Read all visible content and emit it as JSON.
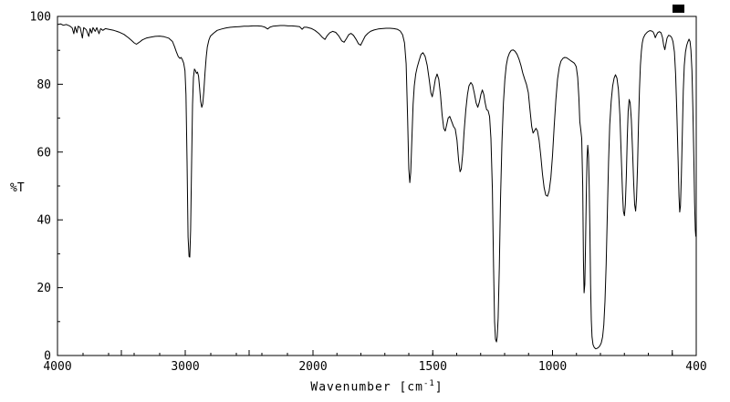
{
  "chart_data": {
    "type": "line",
    "title": "",
    "ylabel": "%T",
    "xlabel": "Wavenumber [cm-1]",
    "xlabel_parts": {
      "main": "Wavenumber [cm",
      "sup": "-1",
      "end": "]"
    },
    "line_color": "#000000",
    "background": "#ffffff",
    "grid": false,
    "legend": "none",
    "x_axis": {
      "min": 400,
      "max": 4000,
      "reversed": true,
      "scale_break_at": 2000,
      "fraction_above_2000": 0.4,
      "major_ticks": [
        4000,
        3500,
        3000,
        2500,
        2000,
        1500,
        1000,
        500,
        400
      ],
      "minor_step_above_2000": 200,
      "minor_step_below_2000": 100,
      "tick_labels": [
        {
          "value": 4000,
          "label": "4000"
        },
        {
          "value": 3000,
          "label": "3000"
        },
        {
          "value": 2000,
          "label": "2000"
        },
        {
          "value": 1500,
          "label": "1500"
        },
        {
          "value": 1000,
          "label": "1000"
        },
        {
          "value": 400,
          "label": "400"
        }
      ]
    },
    "y_axis": {
      "min": 0,
      "max": 100,
      "major_ticks": [
        0,
        20,
        40,
        60,
        80,
        100
      ],
      "minor_step": 10,
      "tick_labels": [
        "0",
        "20",
        "40",
        "60",
        "80",
        "100"
      ]
    },
    "points": [
      [
        4000,
        97.6
      ],
      [
        3975,
        97.8
      ],
      [
        3955,
        97.4
      ],
      [
        3930,
        97.6
      ],
      [
        3905,
        97.2
      ],
      [
        3885,
        96.6
      ],
      [
        3872,
        94.9
      ],
      [
        3862,
        97.0
      ],
      [
        3848,
        95.2
      ],
      [
        3838,
        97.1
      ],
      [
        3822,
        96.7
      ],
      [
        3805,
        93.6
      ],
      [
        3795,
        96.7
      ],
      [
        3775,
        96.1
      ],
      [
        3755,
        94.1
      ],
      [
        3745,
        96.4
      ],
      [
        3732,
        95.1
      ],
      [
        3722,
        96.7
      ],
      [
        3705,
        95.6
      ],
      [
        3692,
        96.7
      ],
      [
        3675,
        94.9
      ],
      [
        3662,
        96.4
      ],
      [
        3645,
        95.9
      ],
      [
        3625,
        96.4
      ],
      [
        3600,
        96.2
      ],
      [
        3560,
        95.9
      ],
      [
        3520,
        95.4
      ],
      [
        3480,
        94.7
      ],
      [
        3445,
        93.7
      ],
      [
        3420,
        92.9
      ],
      [
        3400,
        92.2
      ],
      [
        3382,
        91.8
      ],
      [
        3362,
        92.3
      ],
      [
        3335,
        93.1
      ],
      [
        3305,
        93.6
      ],
      [
        3270,
        93.9
      ],
      [
        3235,
        94.1
      ],
      [
        3200,
        94.2
      ],
      [
        3165,
        94.0
      ],
      [
        3130,
        93.6
      ],
      [
        3100,
        92.6
      ],
      [
        3085,
        91.2
      ],
      [
        3070,
        89.6
      ],
      [
        3055,
        88.2
      ],
      [
        3042,
        87.6
      ],
      [
        3032,
        87.9
      ],
      [
        3022,
        87.2
      ],
      [
        3012,
        86.2
      ],
      [
        3002,
        84.0
      ],
      [
        2994,
        77.0
      ],
      [
        2986,
        57.0
      ],
      [
        2978,
        35.0
      ],
      [
        2970,
        29.2
      ],
      [
        2964,
        29.0
      ],
      [
        2958,
        37.0
      ],
      [
        2950,
        57.0
      ],
      [
        2943,
        74.0
      ],
      [
        2936,
        82.0
      ],
      [
        2928,
        84.5
      ],
      [
        2920,
        84.0
      ],
      [
        2912,
        83.2
      ],
      [
        2904,
        83.6
      ],
      [
        2896,
        82.4
      ],
      [
        2888,
        79.0
      ],
      [
        2879,
        75.0
      ],
      [
        2871,
        73.2
      ],
      [
        2863,
        74.2
      ],
      [
        2854,
        78.0
      ],
      [
        2845,
        83.5
      ],
      [
        2836,
        88.0
      ],
      [
        2827,
        91.0
      ],
      [
        2815,
        93.0
      ],
      [
        2803,
        94.2
      ],
      [
        2780,
        95.0
      ],
      [
        2750,
        95.9
      ],
      [
        2715,
        96.3
      ],
      [
        2680,
        96.6
      ],
      [
        2645,
        96.8
      ],
      [
        2610,
        96.9
      ],
      [
        2575,
        97.0
      ],
      [
        2540,
        97.1
      ],
      [
        2505,
        97.1
      ],
      [
        2470,
        97.2
      ],
      [
        2435,
        97.2
      ],
      [
        2400,
        97.1
      ],
      [
        2375,
        96.8
      ],
      [
        2355,
        96.3
      ],
      [
        2338,
        96.8
      ],
      [
        2315,
        97.1
      ],
      [
        2285,
        97.2
      ],
      [
        2255,
        97.3
      ],
      [
        2225,
        97.3
      ],
      [
        2195,
        97.2
      ],
      [
        2165,
        97.2
      ],
      [
        2135,
        97.1
      ],
      [
        2105,
        97.0
      ],
      [
        2085,
        96.2
      ],
      [
        2070,
        96.8
      ],
      [
        2050,
        96.8
      ],
      [
        2030,
        96.6
      ],
      [
        2010,
        96.4
      ],
      [
        1992,
        95.9
      ],
      [
        1976,
        95.0
      ],
      [
        1962,
        93.9
      ],
      [
        1950,
        93.2
      ],
      [
        1941,
        94.3
      ],
      [
        1930,
        95.2
      ],
      [
        1918,
        95.6
      ],
      [
        1905,
        95.3
      ],
      [
        1892,
        94.2
      ],
      [
        1880,
        92.8
      ],
      [
        1870,
        92.4
      ],
      [
        1861,
        93.4
      ],
      [
        1851,
        94.6
      ],
      [
        1841,
        95.0
      ],
      [
        1831,
        94.4
      ],
      [
        1820,
        93.2
      ],
      [
        1810,
        91.9
      ],
      [
        1801,
        91.5
      ],
      [
        1792,
        92.8
      ],
      [
        1782,
        94.2
      ],
      [
        1771,
        95.0
      ],
      [
        1760,
        95.6
      ],
      [
        1745,
        96.0
      ],
      [
        1728,
        96.3
      ],
      [
        1712,
        96.4
      ],
      [
        1695,
        96.5
      ],
      [
        1678,
        96.5
      ],
      [
        1662,
        96.4
      ],
      [
        1648,
        96.2
      ],
      [
        1636,
        95.7
      ],
      [
        1626,
        94.6
      ],
      [
        1618,
        92.2
      ],
      [
        1611,
        86.0
      ],
      [
        1605,
        70.0
      ],
      [
        1600,
        55.0
      ],
      [
        1596,
        51.0
      ],
      [
        1592,
        54.0
      ],
      [
        1587,
        64.0
      ],
      [
        1582,
        74.0
      ],
      [
        1577,
        79.5
      ],
      [
        1571,
        83.0
      ],
      [
        1565,
        85.0
      ],
      [
        1557,
        87.0
      ],
      [
        1549,
        88.8
      ],
      [
        1541,
        89.3
      ],
      [
        1532,
        88.2
      ],
      [
        1523,
        85.5
      ],
      [
        1515,
        81.5
      ],
      [
        1508,
        77.5
      ],
      [
        1502,
        76.3
      ],
      [
        1496,
        78.5
      ],
      [
        1489,
        81.5
      ],
      [
        1482,
        83.0
      ],
      [
        1475,
        81.5
      ],
      [
        1468,
        77.0
      ],
      [
        1461,
        71.0
      ],
      [
        1454,
        67.0
      ],
      [
        1448,
        66.2
      ],
      [
        1442,
        68.0
      ],
      [
        1436,
        70.0
      ],
      [
        1429,
        70.5
      ],
      [
        1421,
        69.0
      ],
      [
        1413,
        67.5
      ],
      [
        1406,
        66.8
      ],
      [
        1399,
        63.5
      ],
      [
        1392,
        57.5
      ],
      [
        1386,
        54.2
      ],
      [
        1381,
        55.0
      ],
      [
        1375,
        59.5
      ],
      [
        1369,
        66.0
      ],
      [
        1362,
        72.5
      ],
      [
        1355,
        77.0
      ],
      [
        1349,
        79.5
      ],
      [
        1341,
        80.5
      ],
      [
        1334,
        79.8
      ],
      [
        1327,
        77.5
      ],
      [
        1319,
        74.5
      ],
      [
        1312,
        73.2
      ],
      [
        1305,
        74.8
      ],
      [
        1299,
        77.0
      ],
      [
        1293,
        78.3
      ],
      [
        1287,
        77.0
      ],
      [
        1281,
        74.5
      ],
      [
        1275,
        72.5
      ],
      [
        1269,
        72.2
      ],
      [
        1263,
        70.5
      ],
      [
        1257,
        64.0
      ],
      [
        1251,
        49.0
      ],
      [
        1246,
        26.0
      ],
      [
        1242,
        10.0
      ],
      [
        1238,
        4.8
      ],
      [
        1234,
        4.0
      ],
      [
        1231,
        5.5
      ],
      [
        1227,
        11.0
      ],
      [
        1222,
        26.0
      ],
      [
        1217,
        46.0
      ],
      [
        1211,
        63.0
      ],
      [
        1205,
        74.5
      ],
      [
        1199,
        81.5
      ],
      [
        1193,
        85.5
      ],
      [
        1187,
        87.8
      ],
      [
        1180,
        89.2
      ],
      [
        1172,
        90.0
      ],
      [
        1164,
        90.1
      ],
      [
        1156,
        89.7
      ],
      [
        1148,
        88.8
      ],
      [
        1140,
        87.4
      ],
      [
        1132,
        85.5
      ],
      [
        1124,
        83.3
      ],
      [
        1116,
        81.4
      ],
      [
        1109,
        80.0
      ],
      [
        1101,
        77.5
      ],
      [
        1094,
        72.5
      ],
      [
        1087,
        67.5
      ],
      [
        1081,
        65.6
      ],
      [
        1075,
        66.3
      ],
      [
        1069,
        67.0
      ],
      [
        1063,
        66.2
      ],
      [
        1056,
        63.5
      ],
      [
        1049,
        59.0
      ],
      [
        1042,
        53.5
      ],
      [
        1035,
        49.5
      ],
      [
        1028,
        47.3
      ],
      [
        1021,
        47.0
      ],
      [
        1014,
        48.5
      ],
      [
        1007,
        52.5
      ],
      [
        1000,
        59.0
      ],
      [
        993,
        67.5
      ],
      [
        986,
        75.5
      ],
      [
        979,
        81.5
      ],
      [
        972,
        85.0
      ],
      [
        965,
        86.8
      ],
      [
        957,
        87.6
      ],
      [
        949,
        87.9
      ],
      [
        941,
        87.8
      ],
      [
        933,
        87.4
      ],
      [
        925,
        87.0
      ],
      [
        917,
        86.6
      ],
      [
        909,
        86.2
      ],
      [
        901,
        85.2
      ],
      [
        895,
        82.0
      ],
      [
        890,
        76.0
      ],
      [
        886,
        69.0
      ],
      [
        882,
        66.5
      ],
      [
        878,
        64.0
      ],
      [
        874,
        50.0
      ],
      [
        871,
        28.0
      ],
      [
        868,
        18.5
      ],
      [
        865,
        21.0
      ],
      [
        862,
        33.0
      ],
      [
        859,
        47.0
      ],
      [
        856,
        58.0
      ],
      [
        853,
        62.0
      ],
      [
        850,
        59.0
      ],
      [
        847,
        50.0
      ],
      [
        844,
        36.0
      ],
      [
        841,
        21.0
      ],
      [
        838,
        10.5
      ],
      [
        835,
        5.5
      ],
      [
        831,
        3.2
      ],
      [
        826,
        2.4
      ],
      [
        820,
        2.0
      ],
      [
        814,
        2.1
      ],
      [
        808,
        2.4
      ],
      [
        802,
        2.9
      ],
      [
        796,
        3.8
      ],
      [
        791,
        5.5
      ],
      [
        786,
        9.0
      ],
      [
        781,
        16.0
      ],
      [
        776,
        27.0
      ],
      [
        771,
        42.0
      ],
      [
        766,
        57.0
      ],
      [
        761,
        68.0
      ],
      [
        755,
        75.0
      ],
      [
        749,
        79.5
      ],
      [
        743,
        81.8
      ],
      [
        737,
        82.8
      ],
      [
        731,
        81.8
      ],
      [
        725,
        78.5
      ],
      [
        719,
        71.0
      ],
      [
        713,
        59.0
      ],
      [
        708,
        48.0
      ],
      [
        704,
        42.5
      ],
      [
        700,
        41.2
      ],
      [
        696,
        44.5
      ],
      [
        692,
        53.0
      ],
      [
        688,
        64.0
      ],
      [
        684,
        72.0
      ],
      [
        680,
        75.5
      ],
      [
        676,
        74.5
      ],
      [
        671,
        69.5
      ],
      [
        666,
        60.5
      ],
      [
        661,
        50.5
      ],
      [
        657,
        44.5
      ],
      [
        653,
        42.6
      ],
      [
        649,
        46.5
      ],
      [
        645,
        56.0
      ],
      [
        641,
        68.0
      ],
      [
        637,
        78.5
      ],
      [
        633,
        85.5
      ],
      [
        629,
        89.8
      ],
      [
        625,
        92.2
      ],
      [
        621,
        93.6
      ],
      [
        614,
        94.6
      ],
      [
        607,
        95.2
      ],
      [
        600,
        95.6
      ],
      [
        593,
        95.8
      ],
      [
        586,
        95.7
      ],
      [
        580,
        95.4
      ],
      [
        575,
        94.6
      ],
      [
        571,
        93.7
      ],
      [
        567,
        94.4
      ],
      [
        561,
        95.2
      ],
      [
        554,
        95.5
      ],
      [
        547,
        95.2
      ],
      [
        541,
        93.8
      ],
      [
        536,
        91.5
      ],
      [
        531,
        90.2
      ],
      [
        527,
        91.8
      ],
      [
        522,
        93.6
      ],
      [
        516,
        94.4
      ],
      [
        509,
        94.3
      ],
      [
        503,
        93.8
      ],
      [
        497,
        92.6
      ],
      [
        491,
        89.5
      ],
      [
        486,
        83.0
      ],
      [
        481,
        72.0
      ],
      [
        476,
        58.0
      ],
      [
        472,
        47.0
      ],
      [
        469,
        42.3
      ],
      [
        466,
        44.0
      ],
      [
        462,
        53.0
      ],
      [
        458,
        66.0
      ],
      [
        454,
        78.0
      ],
      [
        450,
        85.5
      ],
      [
        445,
        89.5
      ],
      [
        440,
        91.4
      ],
      [
        435,
        92.5
      ],
      [
        430,
        93.3
      ],
      [
        426,
        92.6
      ],
      [
        422,
        90.0
      ],
      [
        418,
        84.0
      ],
      [
        414,
        73.0
      ],
      [
        410,
        58.0
      ],
      [
        407,
        45.0
      ],
      [
        404,
        37.0
      ],
      [
        402,
        35.2
      ],
      [
        400,
        37.5
      ]
    ]
  }
}
